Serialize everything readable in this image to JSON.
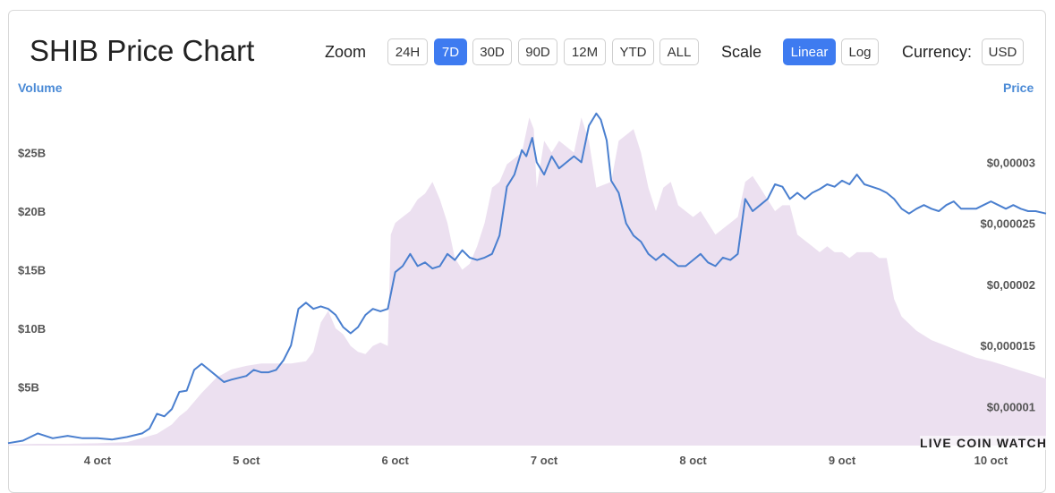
{
  "header": {
    "title": "SHIB Price Chart",
    "zoom_label": "Zoom",
    "zoom_options": [
      "24H",
      "7D",
      "30D",
      "90D",
      "12M",
      "YTD",
      "ALL"
    ],
    "zoom_selected": "7D",
    "scale_label": "Scale",
    "scale_options": [
      "Linear",
      "Log"
    ],
    "scale_selected": "Linear",
    "currency_label": "Currency:",
    "currency_value": "USD"
  },
  "watermark": "LIVE COIN WATCH",
  "colors": {
    "price_line": "#4a7fcf",
    "volume_fill": "#ece0f0",
    "accent": "#3e7bf0",
    "axis_title": "#4a8ad6"
  },
  "chart_data": {
    "type": "line",
    "x_unit": "days in October",
    "x_ticks": [
      {
        "label": "4 oct",
        "value": 4
      },
      {
        "label": "5 oct",
        "value": 5
      },
      {
        "label": "6 oct",
        "value": 6
      },
      {
        "label": "7 oct",
        "value": 7
      },
      {
        "label": "8 oct",
        "value": 8
      },
      {
        "label": "9 oct",
        "value": 9
      },
      {
        "label": "10 oct",
        "value": 10
      }
    ],
    "xlim": [
      3.4,
      10.37
    ],
    "left_axis": {
      "title": "Volume",
      "ylim": [
        0,
        30
      ],
      "ticks": [
        {
          "label": "$5B",
          "value": 5
        },
        {
          "label": "$10B",
          "value": 10
        },
        {
          "label": "$15B",
          "value": 15
        },
        {
          "label": "$20B",
          "value": 20
        },
        {
          "label": "$25B",
          "value": 25
        }
      ]
    },
    "right_axis": {
      "title": "Price",
      "ylim": [
        6.8e-06,
        3.56e-05
      ],
      "ticks": [
        {
          "label": "$0,00001",
          "value": 1e-05
        },
        {
          "label": "$0,000015",
          "value": 1.5e-05
        },
        {
          "label": "$0,00002",
          "value": 2e-05
        },
        {
          "label": "$0,000025",
          "value": 2.5e-05
        },
        {
          "label": "$0,00003",
          "value": 3e-05
        }
      ]
    },
    "series": [
      {
        "name": "Volume",
        "kind": "area",
        "axis": "left",
        "points": [
          [
            3.4,
            0.1
          ],
          [
            3.6,
            0.15
          ],
          [
            3.8,
            0.15
          ],
          [
            4.0,
            0.2
          ],
          [
            4.2,
            0.3
          ],
          [
            4.4,
            1
          ],
          [
            4.5,
            1.8
          ],
          [
            4.55,
            2.5
          ],
          [
            4.6,
            3
          ],
          [
            4.7,
            4.5
          ],
          [
            4.8,
            5.8
          ],
          [
            4.9,
            6.5
          ],
          [
            5.0,
            6.8
          ],
          [
            5.1,
            7
          ],
          [
            5.2,
            7
          ],
          [
            5.3,
            7
          ],
          [
            5.4,
            7.2
          ],
          [
            5.45,
            8
          ],
          [
            5.5,
            10.5
          ],
          [
            5.55,
            11.5
          ],
          [
            5.6,
            10
          ],
          [
            5.65,
            9.5
          ],
          [
            5.7,
            8.5
          ],
          [
            5.75,
            8
          ],
          [
            5.8,
            7.8
          ],
          [
            5.85,
            8.5
          ],
          [
            5.9,
            8.8
          ],
          [
            5.95,
            8.5
          ],
          [
            5.97,
            18
          ],
          [
            6.0,
            19
          ],
          [
            6.05,
            19.5
          ],
          [
            6.1,
            20
          ],
          [
            6.15,
            21
          ],
          [
            6.2,
            21.5
          ],
          [
            6.25,
            22.5
          ],
          [
            6.3,
            21
          ],
          [
            6.35,
            19
          ],
          [
            6.4,
            16
          ],
          [
            6.45,
            15
          ],
          [
            6.5,
            15.5
          ],
          [
            6.55,
            17
          ],
          [
            6.6,
            19
          ],
          [
            6.65,
            22
          ],
          [
            6.7,
            22.5
          ],
          [
            6.75,
            24
          ],
          [
            6.85,
            25
          ],
          [
            6.9,
            28
          ],
          [
            6.93,
            27
          ],
          [
            6.95,
            22
          ],
          [
            7.0,
            26
          ],
          [
            7.05,
            25
          ],
          [
            7.1,
            26
          ],
          [
            7.2,
            25
          ],
          [
            7.25,
            28
          ],
          [
            7.3,
            26
          ],
          [
            7.35,
            22
          ],
          [
            7.45,
            22.5
          ],
          [
            7.5,
            26
          ],
          [
            7.55,
            26.5
          ],
          [
            7.6,
            27
          ],
          [
            7.65,
            25
          ],
          [
            7.7,
            22
          ],
          [
            7.75,
            20
          ],
          [
            7.8,
            22
          ],
          [
            7.85,
            22.5
          ],
          [
            7.9,
            20.5
          ],
          [
            7.95,
            20
          ],
          [
            8.0,
            19.5
          ],
          [
            8.05,
            20
          ],
          [
            8.1,
            19
          ],
          [
            8.15,
            18
          ],
          [
            8.2,
            18.5
          ],
          [
            8.25,
            19
          ],
          [
            8.3,
            19.5
          ],
          [
            8.35,
            22.5
          ],
          [
            8.4,
            23
          ],
          [
            8.45,
            22
          ],
          [
            8.5,
            21
          ],
          [
            8.55,
            20
          ],
          [
            8.6,
            20.5
          ],
          [
            8.65,
            20.5
          ],
          [
            8.7,
            18
          ],
          [
            8.75,
            17.5
          ],
          [
            8.8,
            17
          ],
          [
            8.85,
            16.5
          ],
          [
            8.9,
            17
          ],
          [
            8.95,
            16.5
          ],
          [
            9.0,
            16.5
          ],
          [
            9.05,
            16
          ],
          [
            9.1,
            16.5
          ],
          [
            9.15,
            16.5
          ],
          [
            9.2,
            16.5
          ],
          [
            9.25,
            16
          ],
          [
            9.3,
            16
          ],
          [
            9.35,
            12.5
          ],
          [
            9.4,
            11
          ],
          [
            9.5,
            9.8
          ],
          [
            9.6,
            9
          ],
          [
            9.7,
            8.5
          ],
          [
            9.8,
            8
          ],
          [
            9.9,
            7.5
          ],
          [
            10.0,
            7.2
          ],
          [
            10.1,
            6.8
          ],
          [
            10.2,
            6.4
          ],
          [
            10.3,
            6
          ],
          [
            10.37,
            5.7
          ]
        ]
      },
      {
        "name": "Price",
        "kind": "line",
        "axis": "right",
        "points": [
          [
            3.4,
            7e-06
          ],
          [
            3.5,
            7.2e-06
          ],
          [
            3.6,
            7.8e-06
          ],
          [
            3.7,
            7.4e-06
          ],
          [
            3.8,
            7.6e-06
          ],
          [
            3.9,
            7.4e-06
          ],
          [
            4.0,
            7.4e-06
          ],
          [
            4.1,
            7.3e-06
          ],
          [
            4.2,
            7.5e-06
          ],
          [
            4.3,
            7.8e-06
          ],
          [
            4.35,
            8.2e-06
          ],
          [
            4.4,
            9.4e-06
          ],
          [
            4.45,
            9.2e-06
          ],
          [
            4.5,
            9.8e-06
          ],
          [
            4.55,
            1.12e-05
          ],
          [
            4.6,
            1.13e-05
          ],
          [
            4.65,
            1.3e-05
          ],
          [
            4.7,
            1.35e-05
          ],
          [
            4.75,
            1.3e-05
          ],
          [
            4.8,
            1.25e-05
          ],
          [
            4.85,
            1.2e-05
          ],
          [
            4.9,
            1.22e-05
          ],
          [
            5.0,
            1.25e-05
          ],
          [
            5.05,
            1.3e-05
          ],
          [
            5.1,
            1.28e-05
          ],
          [
            5.15,
            1.28e-05
          ],
          [
            5.2,
            1.3e-05
          ],
          [
            5.25,
            1.38e-05
          ],
          [
            5.3,
            1.5e-05
          ],
          [
            5.35,
            1.8e-05
          ],
          [
            5.4,
            1.85e-05
          ],
          [
            5.45,
            1.8e-05
          ],
          [
            5.5,
            1.82e-05
          ],
          [
            5.55,
            1.8e-05
          ],
          [
            5.6,
            1.75e-05
          ],
          [
            5.65,
            1.65e-05
          ],
          [
            5.7,
            1.6e-05
          ],
          [
            5.75,
            1.65e-05
          ],
          [
            5.8,
            1.75e-05
          ],
          [
            5.85,
            1.8e-05
          ],
          [
            5.9,
            1.78e-05
          ],
          [
            5.95,
            1.8e-05
          ],
          [
            6.0,
            2.1e-05
          ],
          [
            6.05,
            2.15e-05
          ],
          [
            6.1,
            2.25e-05
          ],
          [
            6.15,
            2.15e-05
          ],
          [
            6.2,
            2.18e-05
          ],
          [
            6.25,
            2.13e-05
          ],
          [
            6.3,
            2.15e-05
          ],
          [
            6.35,
            2.25e-05
          ],
          [
            6.4,
            2.2e-05
          ],
          [
            6.45,
            2.28e-05
          ],
          [
            6.5,
            2.22e-05
          ],
          [
            6.55,
            2.2e-05
          ],
          [
            6.6,
            2.22e-05
          ],
          [
            6.65,
            2.25e-05
          ],
          [
            6.7,
            2.4e-05
          ],
          [
            6.75,
            2.8e-05
          ],
          [
            6.8,
            2.9e-05
          ],
          [
            6.85,
            3.1e-05
          ],
          [
            6.88,
            3.05e-05
          ],
          [
            6.92,
            3.2e-05
          ],
          [
            6.95,
            3e-05
          ],
          [
            7.0,
            2.9e-05
          ],
          [
            7.05,
            3.05e-05
          ],
          [
            7.1,
            2.95e-05
          ],
          [
            7.15,
            3e-05
          ],
          [
            7.2,
            3.05e-05
          ],
          [
            7.25,
            3e-05
          ],
          [
            7.3,
            3.3e-05
          ],
          [
            7.35,
            3.4e-05
          ],
          [
            7.38,
            3.35e-05
          ],
          [
            7.42,
            3.18e-05
          ],
          [
            7.45,
            2.85e-05
          ],
          [
            7.5,
            2.75e-05
          ],
          [
            7.55,
            2.5e-05
          ],
          [
            7.6,
            2.4e-05
          ],
          [
            7.65,
            2.35e-05
          ],
          [
            7.7,
            2.25e-05
          ],
          [
            7.75,
            2.2e-05
          ],
          [
            7.8,
            2.25e-05
          ],
          [
            7.85,
            2.2e-05
          ],
          [
            7.9,
            2.15e-05
          ],
          [
            7.95,
            2.15e-05
          ],
          [
            8.0,
            2.2e-05
          ],
          [
            8.05,
            2.25e-05
          ],
          [
            8.1,
            2.18e-05
          ],
          [
            8.15,
            2.15e-05
          ],
          [
            8.2,
            2.22e-05
          ],
          [
            8.25,
            2.2e-05
          ],
          [
            8.3,
            2.25e-05
          ],
          [
            8.35,
            2.7e-05
          ],
          [
            8.4,
            2.6e-05
          ],
          [
            8.45,
            2.65e-05
          ],
          [
            8.5,
            2.7e-05
          ],
          [
            8.55,
            2.82e-05
          ],
          [
            8.6,
            2.8e-05
          ],
          [
            8.65,
            2.7e-05
          ],
          [
            8.7,
            2.75e-05
          ],
          [
            8.75,
            2.7e-05
          ],
          [
            8.8,
            2.75e-05
          ],
          [
            8.85,
            2.78e-05
          ],
          [
            8.9,
            2.82e-05
          ],
          [
            8.95,
            2.8e-05
          ],
          [
            9.0,
            2.85e-05
          ],
          [
            9.05,
            2.82e-05
          ],
          [
            9.1,
            2.9e-05
          ],
          [
            9.15,
            2.82e-05
          ],
          [
            9.2,
            2.8e-05
          ],
          [
            9.25,
            2.78e-05
          ],
          [
            9.3,
            2.75e-05
          ],
          [
            9.35,
            2.7e-05
          ],
          [
            9.4,
            2.62e-05
          ],
          [
            9.45,
            2.58e-05
          ],
          [
            9.5,
            2.62e-05
          ],
          [
            9.55,
            2.65e-05
          ],
          [
            9.6,
            2.62e-05
          ],
          [
            9.65,
            2.6e-05
          ],
          [
            9.7,
            2.65e-05
          ],
          [
            9.75,
            2.68e-05
          ],
          [
            9.8,
            2.62e-05
          ],
          [
            9.85,
            2.62e-05
          ],
          [
            9.9,
            2.62e-05
          ],
          [
            9.95,
            2.65e-05
          ],
          [
            10.0,
            2.68e-05
          ],
          [
            10.05,
            2.65e-05
          ],
          [
            10.1,
            2.62e-05
          ],
          [
            10.15,
            2.65e-05
          ],
          [
            10.2,
            2.62e-05
          ],
          [
            10.25,
            2.6e-05
          ],
          [
            10.3,
            2.6e-05
          ],
          [
            10.37,
            2.58e-05
          ]
        ]
      }
    ]
  }
}
